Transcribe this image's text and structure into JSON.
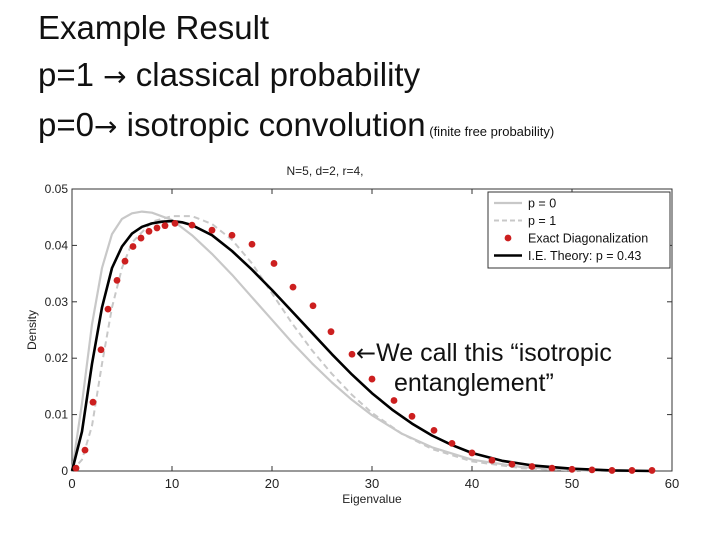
{
  "slide": {
    "line1": "Example Result",
    "line2_pre": "p=1",
    "line2_arrow": "→",
    "line2_post": " classical probability",
    "line3_pre": "p=0",
    "line3_arrow": "→",
    "line3_post": " isotropic convolution",
    "line3_note": " (finite free probability)",
    "callout_arrow": "←",
    "callout_line1": "We call this “isotropic",
    "callout_line2": "entanglement”"
  },
  "chart_data": {
    "type": "line",
    "title": "N=5, d=2, r=4,",
    "xlabel": "Eigenvalue",
    "ylabel": "Density",
    "xlim": [
      0,
      60
    ],
    "ylim": [
      0,
      0.05
    ],
    "xticks": [
      0,
      10,
      20,
      30,
      40,
      50,
      60
    ],
    "yticks": [
      0,
      0.01,
      0.02,
      0.03,
      0.04,
      0.05
    ],
    "ytick_labels": [
      "0",
      "0.01",
      "0.02",
      "0.03",
      "0.04",
      "0.05"
    ],
    "legend_position": "top-right",
    "series": [
      {
        "name": "p = 0",
        "style": "solid",
        "color": "#c8c8c8",
        "x": [
          0,
          1,
          2,
          3,
          4,
          5,
          6,
          7,
          8,
          10,
          12,
          14,
          16,
          18,
          20,
          22,
          24,
          26,
          28,
          30,
          33,
          36,
          40,
          45,
          50,
          55,
          58
        ],
        "y": [
          0.0,
          0.012,
          0.026,
          0.036,
          0.042,
          0.0447,
          0.0457,
          0.046,
          0.0458,
          0.0445,
          0.0418,
          0.0385,
          0.0348,
          0.0308,
          0.0268,
          0.0228,
          0.0191,
          0.0157,
          0.0126,
          0.0099,
          0.0066,
          0.0042,
          0.002,
          0.0007,
          0.0002,
          0.0,
          0.0
        ]
      },
      {
        "name": "p = 1",
        "style": "dashed",
        "color": "#c8c8c8",
        "x": [
          0,
          1,
          2,
          3,
          4,
          5,
          6,
          8,
          10,
          12,
          14,
          16,
          18,
          20,
          22,
          24,
          26,
          28,
          30,
          33,
          36,
          40,
          45,
          50,
          55,
          58
        ],
        "y": [
          0.0,
          0.002,
          0.008,
          0.019,
          0.029,
          0.036,
          0.0405,
          0.0442,
          0.0452,
          0.0452,
          0.0438,
          0.041,
          0.0368,
          0.0315,
          0.0262,
          0.0214,
          0.0172,
          0.0135,
          0.0103,
          0.0066,
          0.0039,
          0.0017,
          0.0005,
          0.0001,
          0.0,
          0.0
        ]
      },
      {
        "name": "Exact Diagonalization",
        "style": "markers",
        "color": "#cc1f1f",
        "x": [
          0.4,
          1.3,
          2.1,
          2.9,
          3.6,
          4.5,
          5.3,
          6.1,
          6.9,
          7.7,
          8.5,
          9.3,
          10.3,
          12.0,
          14.0,
          16.0,
          18.0,
          20.2,
          22.1,
          24.1,
          25.9,
          28.0,
          30.0,
          32.2,
          34.0,
          36.2,
          38.0,
          40.0,
          42.0,
          44.0,
          46.0,
          48.0,
          50.0,
          52.0,
          54.0,
          56.0,
          58.0
        ],
        "y": [
          0.0005,
          0.0037,
          0.0122,
          0.0215,
          0.0287,
          0.0338,
          0.0372,
          0.0398,
          0.0413,
          0.0425,
          0.0431,
          0.0435,
          0.0439,
          0.0436,
          0.0427,
          0.0418,
          0.0402,
          0.0368,
          0.0326,
          0.0293,
          0.0247,
          0.0207,
          0.0163,
          0.0125,
          0.0097,
          0.0072,
          0.0049,
          0.0032,
          0.0019,
          0.0012,
          0.0008,
          0.0005,
          0.0003,
          0.0002,
          0.0001,
          0.0001,
          0.0001
        ]
      },
      {
        "name": "I.E. Theory: p = 0.43",
        "style": "solid-bold",
        "color": "#000000",
        "x": [
          0,
          1,
          2,
          3,
          4,
          5,
          6,
          7,
          8,
          9,
          10,
          11,
          12,
          14,
          16,
          18,
          20,
          22,
          24,
          26,
          28,
          30,
          32,
          34,
          36,
          38,
          40,
          43,
          46,
          50,
          54,
          58
        ],
        "y": [
          0.0,
          0.007,
          0.019,
          0.029,
          0.036,
          0.0398,
          0.0421,
          0.0433,
          0.0439,
          0.0442,
          0.0443,
          0.0441,
          0.0436,
          0.0418,
          0.039,
          0.0357,
          0.0321,
          0.0283,
          0.0245,
          0.0207,
          0.0171,
          0.0138,
          0.0109,
          0.0084,
          0.0063,
          0.0046,
          0.0032,
          0.0018,
          0.001,
          0.0004,
          0.0001,
          0.0
        ]
      }
    ]
  }
}
